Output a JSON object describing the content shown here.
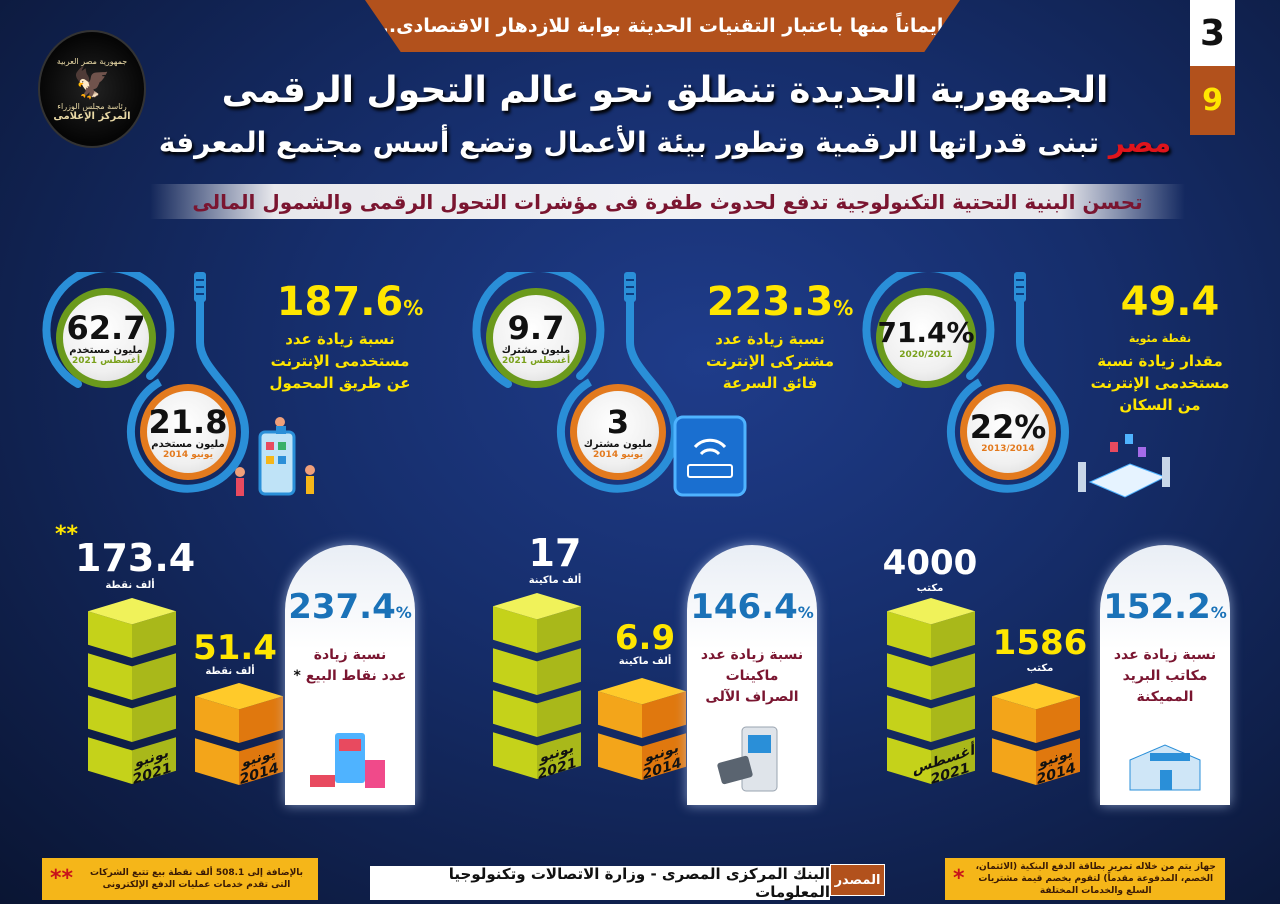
{
  "header": {
    "banner": "إيماناً منها باعتبار التقنيات الحديثة بوابة للازدهار الاقتصادى..",
    "page_number_top": "3",
    "page_number_bottom": "9",
    "logo": {
      "line1": "جمهورية مصر العربية",
      "line2": "رئاسة مجلس الوزراء",
      "line3": "المركز الإعلامى"
    },
    "title": "الجمهورية الجديدة تنطلق نحو عالم التحول الرقمى",
    "subtitle_highlight": "مصر",
    "subtitle_rest": "تبنى قدراتها الرقمية وتطور بيئة الأعمال وتضع أسس مجتمع المعرفة",
    "strip": "تحسن البنية التحتية التكنولوجية تدفع لحدوث طفرة فى مؤشرات التحول الرقمى والشمول المالى"
  },
  "colors": {
    "accent_orange": "#b2511c",
    "yellow": "#ffe600",
    "blue": "#1a72b8",
    "dark_red": "#7a1530"
  },
  "internet": [
    {
      "pct": "187.6",
      "pct_sign": "%",
      "desc": [
        "نسبة زيادة عدد",
        "مستخدمى الإنترنت",
        "عن طريق المحمول"
      ],
      "current": {
        "value": "62.7",
        "unit": "مليون مستخدم",
        "date": "أغسطس 2021"
      },
      "previous": {
        "value": "21.8",
        "unit": "مليون مستخدم",
        "date": "يونيو 2014"
      }
    },
    {
      "pct": "223.3",
      "pct_sign": "%",
      "desc": [
        "نسبة زيادة عدد",
        "مشتركى الإنترنت",
        "فائق السرعة"
      ],
      "current": {
        "value": "9.7",
        "unit": "مليون مشترك",
        "date": "أغسطس 2021"
      },
      "previous": {
        "value": "3",
        "unit": "مليون مشترك",
        "date": "يونيو 2014"
      }
    },
    {
      "pct": "49.4",
      "pct_unit": "نقطة مئوية",
      "desc": [
        "مقدار زيادة نسبة",
        "مستخدمى الإنترنت",
        "من السكان"
      ],
      "current": {
        "value": "71.4%",
        "date": "2020/2021"
      },
      "previous": {
        "value": "22%",
        "date": "2013/2014"
      }
    }
  ],
  "financial": [
    {
      "pct": "237.4",
      "pct_sign": "%",
      "desc": [
        "نسبة زيادة",
        "عدد نقاط البيع"
      ],
      "star": "*",
      "top_star": "**",
      "current": {
        "value": "173.4",
        "unit": "ألف نقطة",
        "month": "يونيو",
        "year": "2021"
      },
      "previous": {
        "value": "51.4",
        "unit": "ألف نقطة",
        "month": "يونيو",
        "year": "2014"
      }
    },
    {
      "pct": "146.4",
      "pct_sign": "%",
      "desc": [
        "نسبة زيادة عدد",
        "ماكينات",
        "الصراف الآلى"
      ],
      "current": {
        "value": "17",
        "unit": "ألف ماكينة",
        "month": "يونيو",
        "year": "2021"
      },
      "previous": {
        "value": "6.9",
        "unit": "ألف ماكينة",
        "month": "يونيو",
        "year": "2014"
      }
    },
    {
      "pct": "152.2",
      "pct_sign": "%",
      "desc": [
        "نسبة زيادة عدد",
        "مكاتب البريد",
        "المميكنة"
      ],
      "current": {
        "value": "4000",
        "unit": "مكتب",
        "month": "أغسطس",
        "year": "2021"
      },
      "previous": {
        "value": "1586",
        "unit": "مكتب",
        "month": "يونيو",
        "year": "2014"
      }
    }
  ],
  "footer": {
    "note_left_star": "**",
    "note_left": "بالإضافة إلى 508.1 ألف نقطة بيع تتبع الشركات التى تقدم خدمات عمليات الدفع الإلكترونى",
    "source_label": "المصدر",
    "source": "البنك المركزى المصرى - وزارة الاتصالات وتكنولوجيا المعلومات",
    "note_right_star": "*",
    "note_right": "جهاز يتم من خلاله تمرير بطاقة الدفع البنكية (الائتمان، الخصم، المدفوعة مقدماً) لتقوم بخصم قيمة مشتريات السلع والخدمات المختلفة"
  }
}
